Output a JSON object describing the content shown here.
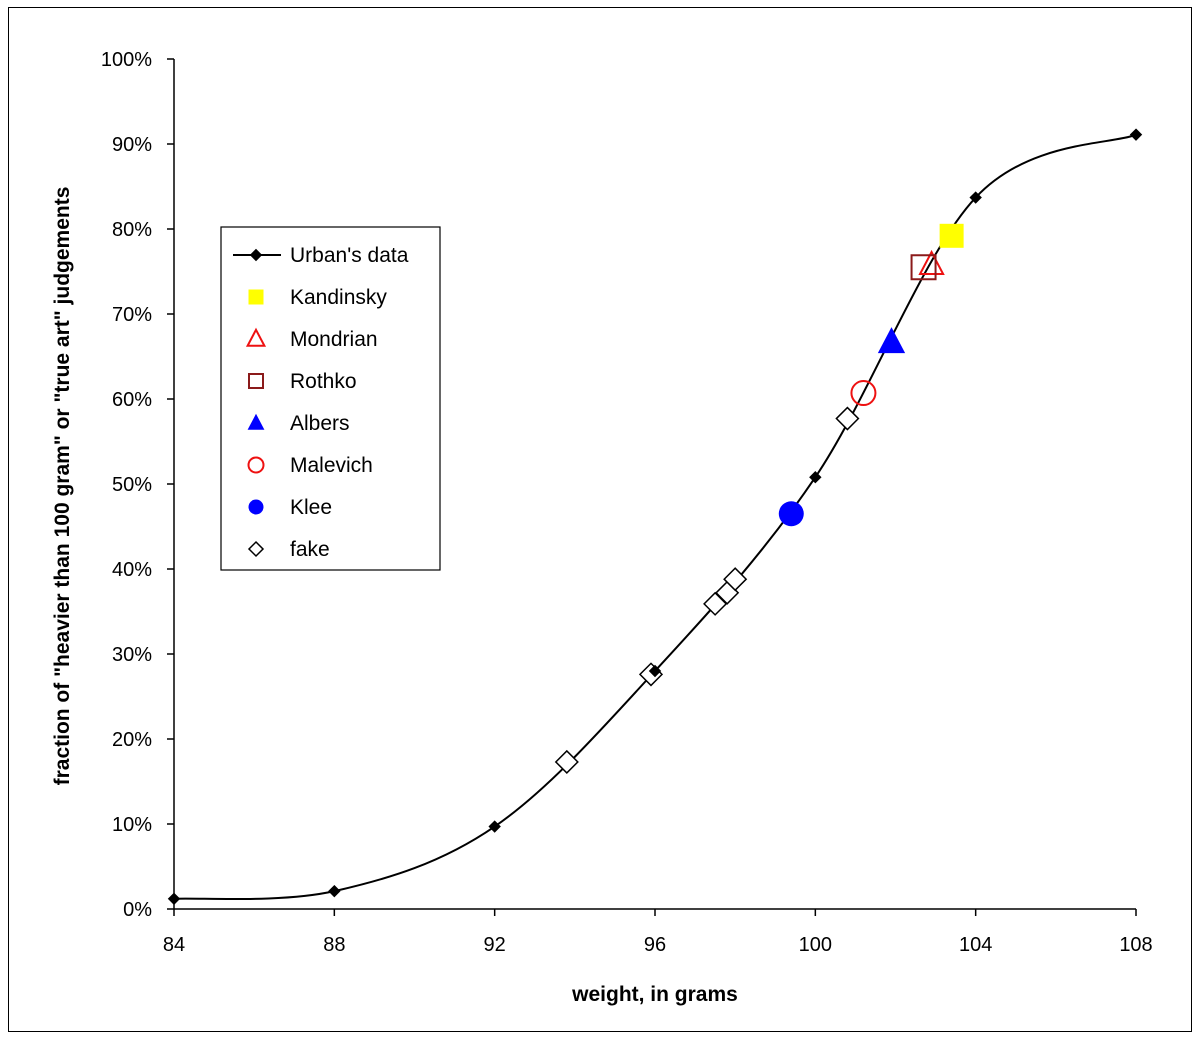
{
  "chart_data": {
    "type": "line",
    "title": "",
    "xlabel": "weight, in grams",
    "ylabel": "fraction of \"heavier than 100 gram\" or \"true art\" judgements",
    "xlim": [
      84,
      108
    ],
    "ylim": [
      0,
      1
    ],
    "x_ticks": [
      84,
      88,
      92,
      96,
      100,
      104,
      108
    ],
    "x_tick_labels": [
      "84",
      "88",
      "92",
      "96",
      "100",
      "104",
      "108"
    ],
    "y_ticks": [
      0,
      0.1,
      0.2,
      0.3,
      0.4,
      0.5,
      0.6,
      0.7,
      0.8,
      0.9,
      1.0
    ],
    "y_tick_labels": [
      "0%",
      "10%",
      "20%",
      "30%",
      "40%",
      "50%",
      "60%",
      "70%",
      "80%",
      "90%",
      "100%"
    ],
    "grid": false,
    "legend_position": "left",
    "series": [
      {
        "name": "Urban's data",
        "kind": "line-with-markers",
        "marker": "diamond-filled",
        "color": "#000000",
        "points": [
          {
            "x": 84,
            "y": 0.012
          },
          {
            "x": 88,
            "y": 0.021
          },
          {
            "x": 92,
            "y": 0.097
          },
          {
            "x": 96,
            "y": 0.28
          },
          {
            "x": 100,
            "y": 0.508
          },
          {
            "x": 104,
            "y": 0.837
          },
          {
            "x": 108,
            "y": 0.911
          }
        ]
      },
      {
        "name": "Kandinsky",
        "kind": "marker",
        "marker": "square-filled",
        "color": "#ffff00",
        "points": [
          {
            "x": 103.4,
            "y": 0.792
          }
        ]
      },
      {
        "name": "Mondrian",
        "kind": "marker",
        "marker": "triangle-open",
        "color": "#ee1111",
        "points": [
          {
            "x": 102.9,
            "y": 0.758
          }
        ]
      },
      {
        "name": "Rothko",
        "kind": "marker",
        "marker": "square-open",
        "color": "#8b1a1a",
        "points": [
          {
            "x": 102.7,
            "y": 0.755
          }
        ]
      },
      {
        "name": "Albers",
        "kind": "marker",
        "marker": "triangle-filled",
        "color": "#0000ff",
        "points": [
          {
            "x": 101.9,
            "y": 0.667
          }
        ]
      },
      {
        "name": "Malevich",
        "kind": "marker",
        "marker": "circle-open",
        "color": "#ee1111",
        "points": [
          {
            "x": 101.2,
            "y": 0.607
          }
        ]
      },
      {
        "name": "Klee",
        "kind": "marker",
        "marker": "circle-filled",
        "color": "#0000ff",
        "points": [
          {
            "x": 99.4,
            "y": 0.465
          }
        ]
      },
      {
        "name": "fake",
        "kind": "marker",
        "marker": "diamond-open",
        "color": "#000000",
        "points": [
          {
            "x": 93.8,
            "y": 0.173
          },
          {
            "x": 95.9,
            "y": 0.276
          },
          {
            "x": 97.5,
            "y": 0.359
          },
          {
            "x": 97.8,
            "y": 0.372
          },
          {
            "x": 98.0,
            "y": 0.388
          },
          {
            "x": 100.8,
            "y": 0.577
          }
        ]
      }
    ]
  }
}
